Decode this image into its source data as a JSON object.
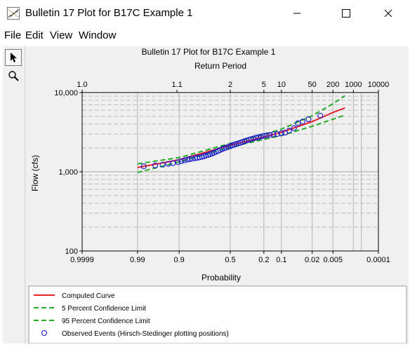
{
  "window": {
    "title": "Bulletin 17 Plot for B17C Example 1",
    "minimize_glyph": "—",
    "maximize_glyph": "☐",
    "close_glyph": "✕"
  },
  "menu": {
    "file": "File",
    "edit": "Edit",
    "view": "View",
    "window": "Window"
  },
  "tools": [
    {
      "icon": "pointer-arrow-icon",
      "active": true
    },
    {
      "icon": "magnifier-icon",
      "active": false
    }
  ],
  "chart_data": {
    "type": "scatter",
    "title": "Bulletin 17 Plot for B17C Example 1",
    "top_axis_label": "Return Period",
    "xlabel": "Probability",
    "ylabel": "Flow (cfs)",
    "xscale": "normal-probability (exceedance)",
    "yscale": "log",
    "ylim": [
      100,
      10000
    ],
    "xlim": [
      0.9999,
      0.0001
    ],
    "yticks": [
      {
        "value": 100,
        "label": "100"
      },
      {
        "value": 1000,
        "label": "1,000"
      },
      {
        "value": 10000,
        "label": "10,000"
      }
    ],
    "xticks": [
      {
        "value": 0.9999,
        "label": "0.9999"
      },
      {
        "value": 0.99,
        "label": "0.99"
      },
      {
        "value": 0.9,
        "label": "0.9"
      },
      {
        "value": 0.5,
        "label": "0.5"
      },
      {
        "value": 0.2,
        "label": "0.2"
      },
      {
        "value": 0.1,
        "label": "0.1"
      },
      {
        "value": 0.02,
        "label": "0.02"
      },
      {
        "value": 0.005,
        "label": "0.005"
      },
      {
        "value": 0.0001,
        "label": "0.0001"
      }
    ],
    "top_ticks": [
      {
        "value": 1.0,
        "label": "1.0"
      },
      {
        "value": 1.1,
        "label": "1.1"
      },
      {
        "value": 2,
        "label": "2"
      },
      {
        "value": 5,
        "label": "5"
      },
      {
        "value": 10,
        "label": "10"
      },
      {
        "value": 50,
        "label": "50"
      },
      {
        "value": 200,
        "label": "200"
      },
      {
        "value": 1000,
        "label": "1000"
      },
      {
        "value": 10000,
        "label": "10000"
      }
    ],
    "grid": true,
    "legend_position": "bottom",
    "series": [
      {
        "name": "Computed Curve",
        "kind": "line",
        "color": "#e8202a",
        "dash": false,
        "points": [
          [
            0.99,
            1130
          ],
          [
            0.9,
            1420
          ],
          [
            0.5,
            2160
          ],
          [
            0.2,
            2750
          ],
          [
            0.1,
            3150
          ],
          [
            0.02,
            4300
          ],
          [
            0.005,
            5600
          ],
          [
            0.002,
            6400
          ]
        ]
      },
      {
        "name": "5 Percent Confidence Limit",
        "kind": "line",
        "color": "#22aa22",
        "dash": true,
        "points": [
          [
            0.99,
            1260
          ],
          [
            0.9,
            1510
          ],
          [
            0.5,
            2280
          ],
          [
            0.2,
            2950
          ],
          [
            0.1,
            3450
          ],
          [
            0.02,
            5100
          ],
          [
            0.005,
            7200
          ],
          [
            0.002,
            9100
          ]
        ]
      },
      {
        "name": "95 Percent Confidence Limit",
        "kind": "line",
        "color": "#22aa22",
        "dash": true,
        "points": [
          [
            0.99,
            980
          ],
          [
            0.9,
            1330
          ],
          [
            0.5,
            2050
          ],
          [
            0.2,
            2560
          ],
          [
            0.1,
            2870
          ],
          [
            0.02,
            3750
          ],
          [
            0.005,
            4600
          ],
          [
            0.002,
            5200
          ]
        ]
      },
      {
        "name": "Observed Events (Hirsch-Stedinger plotting positions)",
        "kind": "scatter",
        "color": "#1a1acc",
        "points": [
          [
            0.985,
            1170
          ],
          [
            0.97,
            1200
          ],
          [
            0.955,
            1225
          ],
          [
            0.94,
            1260
          ],
          [
            0.925,
            1285
          ],
          [
            0.905,
            1320
          ],
          [
            0.89,
            1360
          ],
          [
            0.875,
            1395
          ],
          [
            0.86,
            1420
          ],
          [
            0.845,
            1440
          ],
          [
            0.83,
            1460
          ],
          [
            0.81,
            1480
          ],
          [
            0.795,
            1500
          ],
          [
            0.78,
            1520
          ],
          [
            0.76,
            1545
          ],
          [
            0.745,
            1570
          ],
          [
            0.73,
            1600
          ],
          [
            0.71,
            1630
          ],
          [
            0.695,
            1660
          ],
          [
            0.675,
            1700
          ],
          [
            0.66,
            1740
          ],
          [
            0.64,
            1780
          ],
          [
            0.62,
            1830
          ],
          [
            0.6,
            1880
          ],
          [
            0.58,
            1930
          ],
          [
            0.56,
            1980
          ],
          [
            0.54,
            2020
          ],
          [
            0.52,
            2060
          ],
          [
            0.5,
            2100
          ],
          [
            0.48,
            2150
          ],
          [
            0.46,
            2200
          ],
          [
            0.44,
            2240
          ],
          [
            0.42,
            2280
          ],
          [
            0.4,
            2320
          ],
          [
            0.38,
            2380
          ],
          [
            0.36,
            2430
          ],
          [
            0.34,
            2480
          ],
          [
            0.32,
            2530
          ],
          [
            0.3,
            2580
          ],
          [
            0.28,
            2630
          ],
          [
            0.26,
            2680
          ],
          [
            0.24,
            2730
          ],
          [
            0.22,
            2780
          ],
          [
            0.2,
            2840
          ],
          [
            0.18,
            2880
          ],
          [
            0.16,
            2920
          ],
          [
            0.14,
            2960
          ],
          [
            0.12,
            3000
          ],
          [
            0.1,
            3060
          ],
          [
            0.085,
            3120
          ],
          [
            0.07,
            3300
          ],
          [
            0.055,
            3550
          ],
          [
            0.045,
            4100
          ],
          [
            0.035,
            4300
          ],
          [
            0.025,
            4600
          ],
          [
            0.012,
            5100
          ]
        ]
      }
    ]
  }
}
